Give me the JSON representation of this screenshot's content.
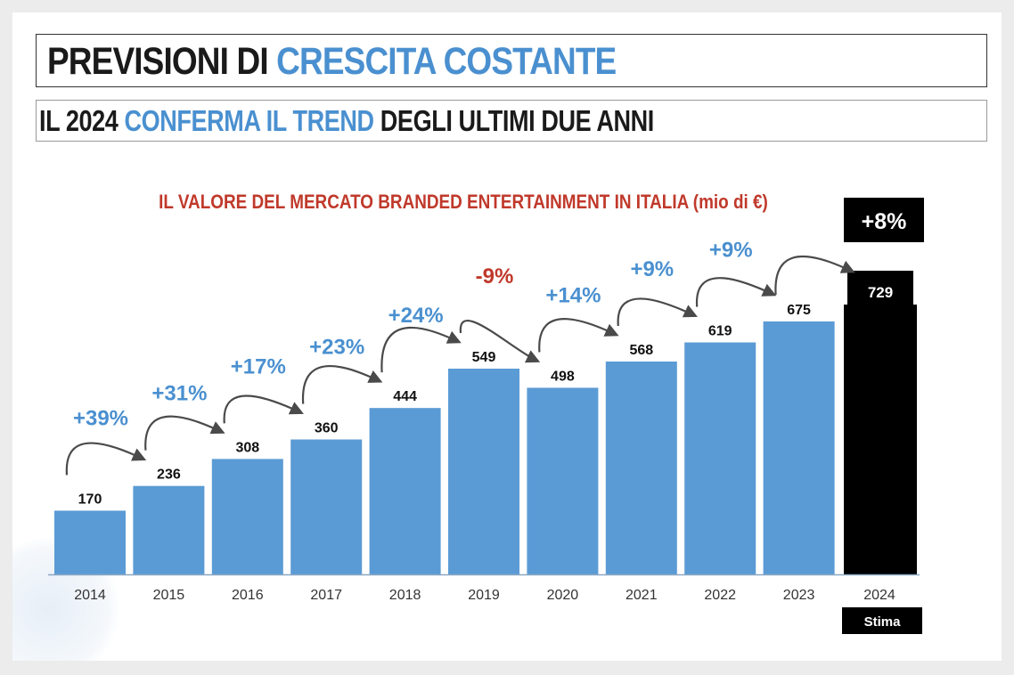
{
  "header": {
    "title_part1": "PREVISIONI DI ",
    "title_part2": "CRESCITA COSTANTE",
    "subtitle_part1": "IL 2024 ",
    "subtitle_part2": "CONFERMA IL TREND",
    "subtitle_part3": " DEGLI ULTIMI DUE ANNI"
  },
  "chart_data": {
    "type": "bar",
    "title": "IL VALORE DEL MERCATO BRANDED ENTERTAINMENT IN ITALIA (mio di €)",
    "categories": [
      "2014",
      "2015",
      "2016",
      "2017",
      "2018",
      "2019",
      "2020",
      "2021",
      "2022",
      "2023",
      "2024"
    ],
    "values": [
      170,
      236,
      308,
      360,
      444,
      549,
      498,
      568,
      619,
      675,
      729
    ],
    "growth_labels": [
      "+39%",
      "+31%",
      "+17%",
      "+23%",
      "+24%",
      "-9%",
      "+14%",
      "+9%",
      "+9%",
      "+8%"
    ],
    "forecast_category": "2024",
    "forecast_label": "Stima",
    "xlabel": "",
    "ylabel": "",
    "ylim": [
      0,
      820
    ],
    "grid": false,
    "colors": {
      "bar": "#5b9bd5",
      "forecast_bar": "#000000",
      "growth_positive": "#4a90d0",
      "growth_negative": "#c0392b",
      "title": "#c0392b",
      "arrow": "#4a4a4a"
    }
  }
}
